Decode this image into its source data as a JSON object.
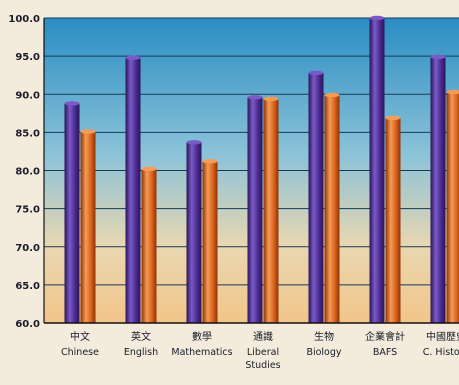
{
  "chart_data": {
    "type": "bar",
    "title": "",
    "xlabel": "",
    "ylabel": "",
    "ylim": [
      60,
      100
    ],
    "yticks": [
      "60.0",
      "65.0",
      "70.0",
      "75.0",
      "80.0",
      "85.0",
      "90.0",
      "95.0",
      "100.0"
    ],
    "grid": true,
    "legend": "none",
    "categories": [
      {
        "zh": "中文",
        "en": [
          "Chinese"
        ]
      },
      {
        "zh": "英文",
        "en": [
          "English"
        ]
      },
      {
        "zh": "數學",
        "en": [
          "Mathematics"
        ]
      },
      {
        "zh": "通識",
        "en": [
          "Liberal",
          "Studies"
        ]
      },
      {
        "zh": "生物",
        "en": [
          "Biology"
        ]
      },
      {
        "zh": "企業會計",
        "en": [
          "BAFS"
        ]
      },
      {
        "zh": "中國歷史",
        "en": [
          "C. History"
        ]
      }
    ],
    "series": [
      {
        "values": [
          88.8,
          94.8,
          83.7,
          89.6,
          92.8,
          100.0,
          94.9
        ]
      },
      {
        "values": [
          85.1,
          80.2,
          81.2,
          89.4,
          89.9,
          86.9,
          90.3
        ]
      }
    ]
  },
  "colors": {
    "series1": "#4b2b8f",
    "series1_light": "#7a5ac7",
    "series1_dark": "#2a1458",
    "series2": "#d9621d",
    "series2_light": "#f59b55",
    "series2_dark": "#8c3306",
    "sky_top": "#2f94c8",
    "sky_bottom": "#eed8a8",
    "grid": "#143a5c"
  }
}
